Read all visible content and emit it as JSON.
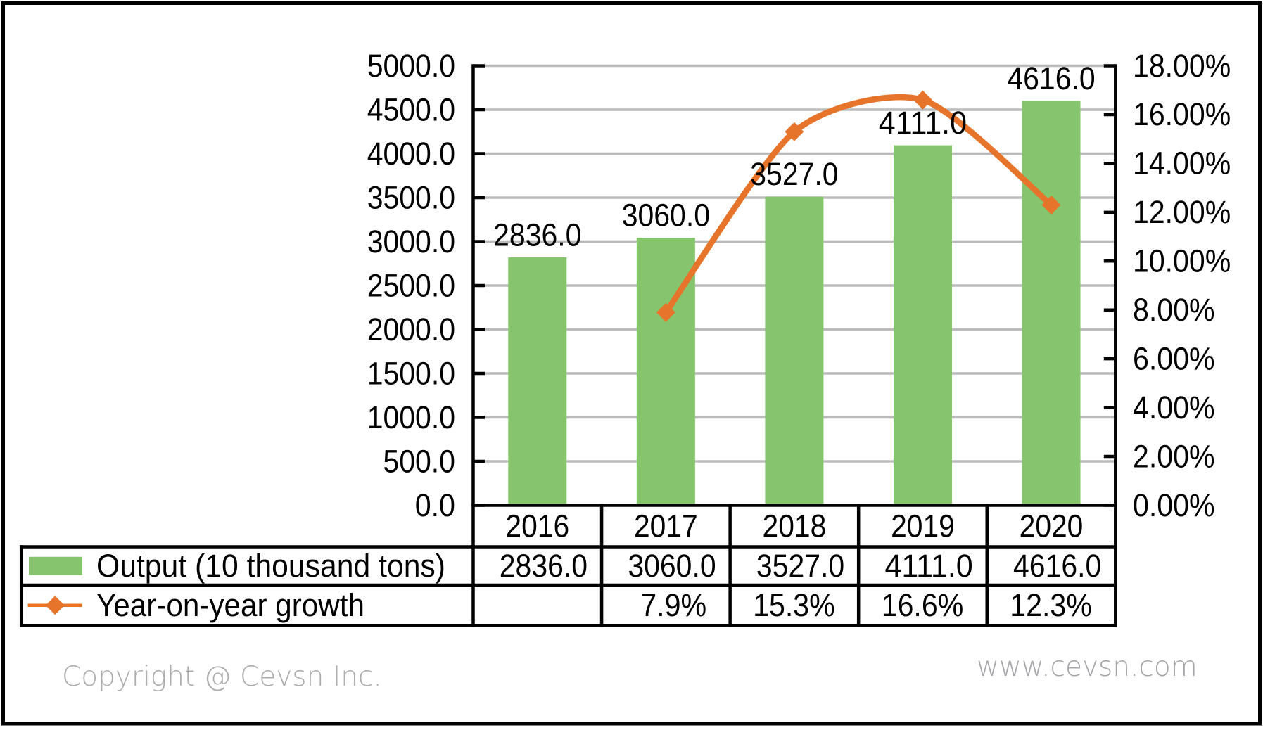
{
  "chart_data": {
    "type": "bar",
    "subtype": "combo-bar-line-with-data-table",
    "categories": [
      "2016",
      "2017",
      "2018",
      "2019",
      "2020"
    ],
    "series": [
      {
        "name": "Output (10 thousand tons)",
        "type": "bar",
        "axis": "left",
        "values": [
          2836.0,
          3060.0,
          3527.0,
          4111.0,
          4616.0
        ],
        "data_labels": [
          "2836.0",
          "3060.0",
          "3527.0",
          "4111.0",
          "4616.0"
        ],
        "table_values": [
          "2836.0",
          "3060.0",
          "3527.0",
          "4111.0",
          "4616.0"
        ],
        "color": "#86C46D"
      },
      {
        "name": "Year-on-year growth",
        "type": "line",
        "axis": "right",
        "smooth": true,
        "marker": "diamond",
        "values": [
          null,
          7.9,
          15.3,
          16.6,
          12.3
        ],
        "table_values": [
          "",
          "7.9%",
          "15.3%",
          "16.6%",
          "12.3%"
        ],
        "color": "#E7742B"
      }
    ],
    "left_axis": {
      "min": 0,
      "max": 5000,
      "step": 500,
      "labels": [
        "0.0",
        "500.0",
        "1000.0",
        "1500.0",
        "2000.0",
        "2500.0",
        "3000.0",
        "3500.0",
        "4000.0",
        "4500.0",
        "5000.0"
      ]
    },
    "right_axis": {
      "min": 0,
      "max": 18,
      "step": 2,
      "labels": [
        "0.00%",
        "2.00%",
        "4.00%",
        "6.00%",
        "8.00%",
        "10.00%",
        "12.00%",
        "14.00%",
        "16.00%",
        "18.00%"
      ]
    },
    "grid": true,
    "legend_position": "data-table-left",
    "text_color": "#000000",
    "gridline_color": "#BBBBBB",
    "border_color": "#000000"
  },
  "footer": {
    "copyright": "Copyright @ Cevsn Inc.",
    "website": "www.cevsn.com"
  }
}
